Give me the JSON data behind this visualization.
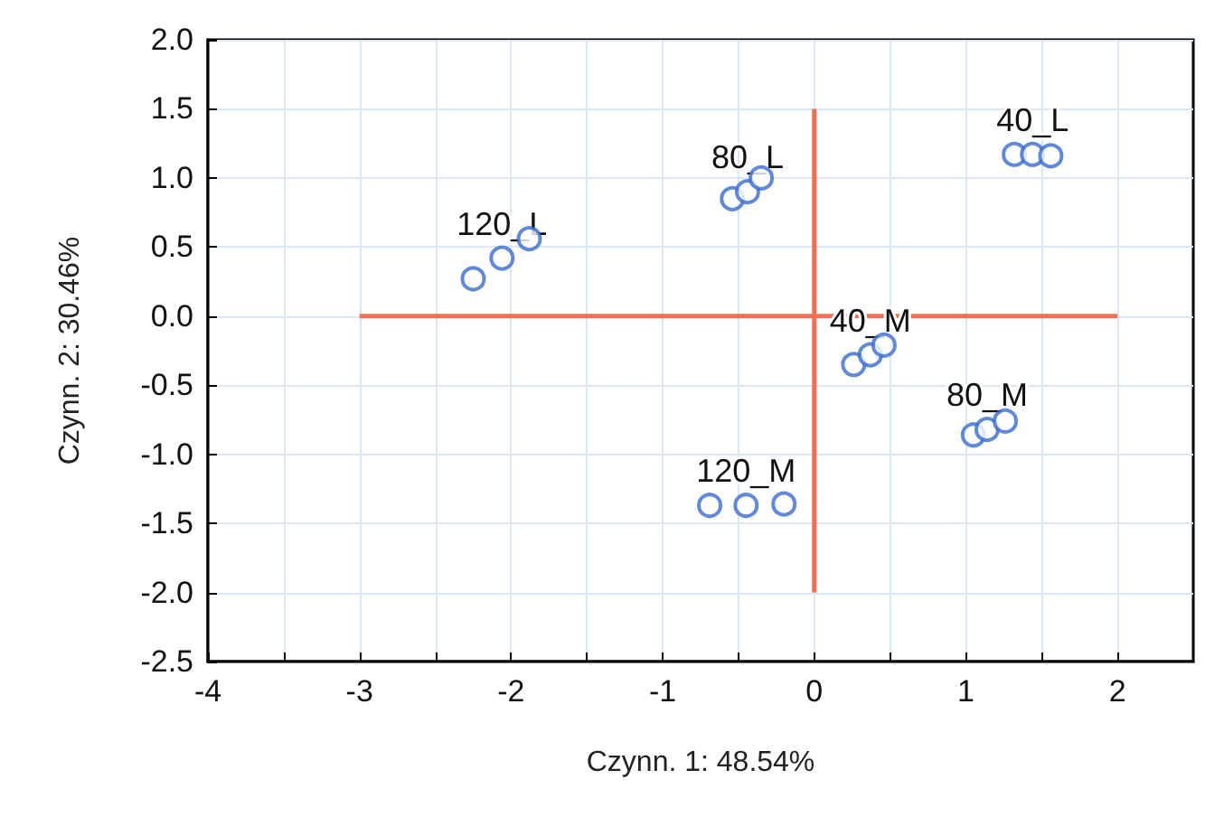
{
  "chart_data": {
    "type": "scatter",
    "xlabel": "Czynn. 1: 48.54%",
    "ylabel": "Czynn. 2: 30.46%",
    "xlim": [
      -4,
      2.5
    ],
    "ylim": [
      -2.5,
      2.0
    ],
    "xticks": [
      -4,
      {
        "value": -3.5,
        "label": null
      },
      -3,
      {
        "value": -2.5,
        "label": null
      },
      -2,
      {
        "value": -1.5,
        "label": null
      },
      -1,
      {
        "value": -0.5,
        "label": null
      },
      0,
      {
        "value": 0.5,
        "label": null
      },
      1,
      {
        "value": 1.5,
        "label": null
      },
      2
    ],
    "yticks": [
      {
        "value": -2.5,
        "label": "-2.5"
      },
      {
        "value": -2,
        "label": "-2.0"
      },
      {
        "value": -1.5,
        "label": "-1.5"
      },
      {
        "value": -1,
        "label": "-1.0"
      },
      {
        "value": -0.5,
        "label": "-0.5"
      },
      {
        "value": 0,
        "label": "0.0"
      },
      {
        "value": 0.5,
        "label": "0.5"
      },
      {
        "value": 1,
        "label": "1.0"
      },
      {
        "value": 1.5,
        "label": "1.5"
      },
      {
        "value": 2,
        "label": "2.0"
      }
    ],
    "grid": true,
    "marker": "circle",
    "series": [
      {
        "color": "#3a6bd0",
        "x": [
          -2.25,
          -2.06,
          -1.88,
          -0.54,
          -0.44,
          -0.35,
          1.32,
          1.44,
          1.56,
          0.26,
          0.37,
          0.46,
          1.05,
          1.14,
          1.26,
          -0.69,
          -0.45,
          -0.2
        ],
        "values": [
          0.27,
          0.42,
          0.56,
          0.85,
          0.9,
          1.0,
          1.17,
          1.17,
          1.16,
          -0.35,
          -0.28,
          -0.21,
          -0.86,
          -0.82,
          -0.76,
          -1.37,
          -1.37,
          -1.36
        ]
      },
      {
        "type": "line",
        "color": "#f07050",
        "marker": "none",
        "x": [
          -3,
          2
        ],
        "values": [
          0,
          0
        ]
      },
      {
        "type": "line",
        "color": "#f07050",
        "marker": "none",
        "x": [
          0,
          0
        ],
        "values": [
          -2,
          1.5
        ]
      }
    ],
    "annotations": [
      {
        "text": "120_L",
        "x": -2.06,
        "y": 0.42
      },
      {
        "text": "80_L",
        "x": -0.44,
        "y": 0.9
      },
      {
        "text": "40_L",
        "x": 1.44,
        "y": 1.17
      },
      {
        "text": "40_M",
        "x": 0.37,
        "y": -0.28
      },
      {
        "text": "80_M",
        "x": 1.14,
        "y": -0.82
      },
      {
        "text": "120_M",
        "x": -0.45,
        "y": -1.37
      }
    ]
  }
}
